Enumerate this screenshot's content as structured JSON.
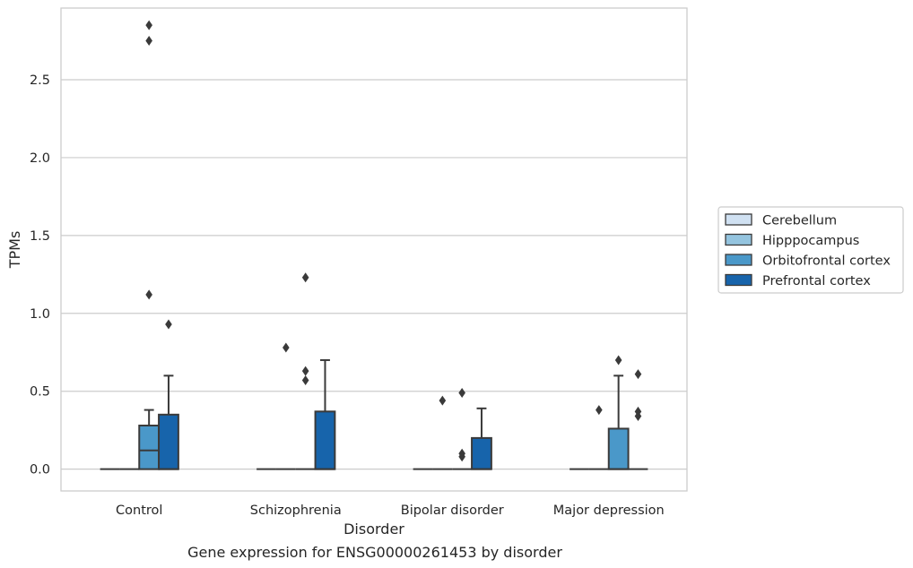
{
  "chart_data": {
    "type": "box",
    "title": "Gene expression for ENSG00000261453 by disorder",
    "xlabel": "Disorder",
    "ylabel": "TPMs",
    "ylim": [
      -0.14,
      2.96
    ],
    "yticks": [
      "0.0",
      "0.5",
      "1.0",
      "1.5",
      "2.0",
      "2.5"
    ],
    "categories": [
      "Control",
      "Schizophrenia",
      "Bipolar disorder",
      "Major depression"
    ],
    "grid": "horizontal",
    "legend_position": "right",
    "series": [
      {
        "name": "Cerebellum",
        "color": "#d0e1f2",
        "boxes": [
          {
            "q1": 0,
            "median": 0,
            "q3": 0,
            "whisker_low": 0,
            "whisker_high": 0,
            "outliers": []
          },
          {
            "q1": 0,
            "median": 0,
            "q3": 0,
            "whisker_low": 0,
            "whisker_high": 0,
            "outliers": []
          },
          {
            "q1": 0,
            "median": 0,
            "q3": 0,
            "whisker_low": 0,
            "whisker_high": 0,
            "outliers": []
          },
          {
            "q1": 0,
            "median": 0,
            "q3": 0,
            "whisker_low": 0,
            "whisker_high": 0,
            "outliers": []
          }
        ]
      },
      {
        "name": "Hipppocampus",
        "color": "#94c4df",
        "boxes": [
          {
            "q1": 0,
            "median": 0,
            "q3": 0,
            "whisker_low": 0,
            "whisker_high": 0,
            "outliers": []
          },
          {
            "q1": 0,
            "median": 0,
            "q3": 0,
            "whisker_low": 0,
            "whisker_high": 0,
            "outliers": [
              0.78
            ]
          },
          {
            "q1": 0,
            "median": 0,
            "q3": 0,
            "whisker_low": 0,
            "whisker_high": 0,
            "outliers": [
              0.44
            ]
          },
          {
            "q1": 0,
            "median": 0,
            "q3": 0,
            "whisker_low": 0,
            "whisker_high": 0,
            "outliers": [
              0.38
            ]
          }
        ]
      },
      {
        "name": "Orbitofrontal cortex",
        "color": "#4a98c9",
        "boxes": [
          {
            "q1": 0,
            "median": 0.12,
            "q3": 0.28,
            "whisker_low": 0,
            "whisker_high": 0.38,
            "outliers": [
              1.12,
              2.75,
              2.85
            ]
          },
          {
            "q1": 0,
            "median": 0,
            "q3": 0,
            "whisker_low": 0,
            "whisker_high": 0,
            "outliers": [
              0.57,
              0.63,
              1.23
            ]
          },
          {
            "q1": 0,
            "median": 0,
            "q3": 0,
            "whisker_low": 0,
            "whisker_high": 0,
            "outliers": [
              0.08,
              0.1,
              0.49
            ]
          },
          {
            "q1": 0,
            "median": 0,
            "q3": 0.26,
            "whisker_low": 0,
            "whisker_high": 0.6,
            "outliers": [
              0.7
            ]
          }
        ]
      },
      {
        "name": "Prefrontal cortex",
        "color": "#1764ab",
        "boxes": [
          {
            "q1": 0,
            "median": 0,
            "q3": 0.35,
            "whisker_low": 0,
            "whisker_high": 0.6,
            "outliers": [
              0.93
            ]
          },
          {
            "q1": 0,
            "median": 0,
            "q3": 0.37,
            "whisker_low": 0,
            "whisker_high": 0.7,
            "outliers": []
          },
          {
            "q1": 0,
            "median": 0,
            "q3": 0.2,
            "whisker_low": 0,
            "whisker_high": 0.39,
            "outliers": []
          },
          {
            "q1": 0,
            "median": 0,
            "q3": 0,
            "whisker_low": 0,
            "whisker_high": 0,
            "outliers": [
              0.34,
              0.37,
              0.61
            ]
          }
        ]
      }
    ]
  }
}
